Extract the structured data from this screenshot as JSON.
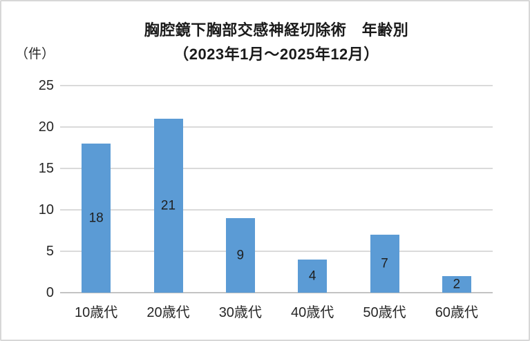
{
  "chart_data": {
    "type": "bar",
    "title": {
      "line1": "胸腔鏡下胸部交感神経切除術　年齢別",
      "line2": "（2023年1月～2025年12月）"
    },
    "unit_label": "（件）",
    "xlabel": "",
    "ylabel": "（件）",
    "categories": [
      "10歳代",
      "20歳代",
      "30歳代",
      "40歳代",
      "50歳代",
      "60歳代"
    ],
    "values": [
      18,
      21,
      9,
      4,
      7,
      2
    ],
    "data_labels": [
      "18",
      "21",
      "9",
      "4",
      "7",
      "2"
    ],
    "ylim": [
      0,
      25
    ],
    "yticks": [
      0,
      5,
      10,
      15,
      20,
      25
    ],
    "grid": true,
    "legend": "none",
    "colors": {
      "bar": "#5b9bd5",
      "gridline": "#dadada",
      "axis_line": "#c3c3c3",
      "text": "#262626",
      "title_text": "#1a1a1a",
      "frame_border": "#d7d7d7"
    }
  }
}
